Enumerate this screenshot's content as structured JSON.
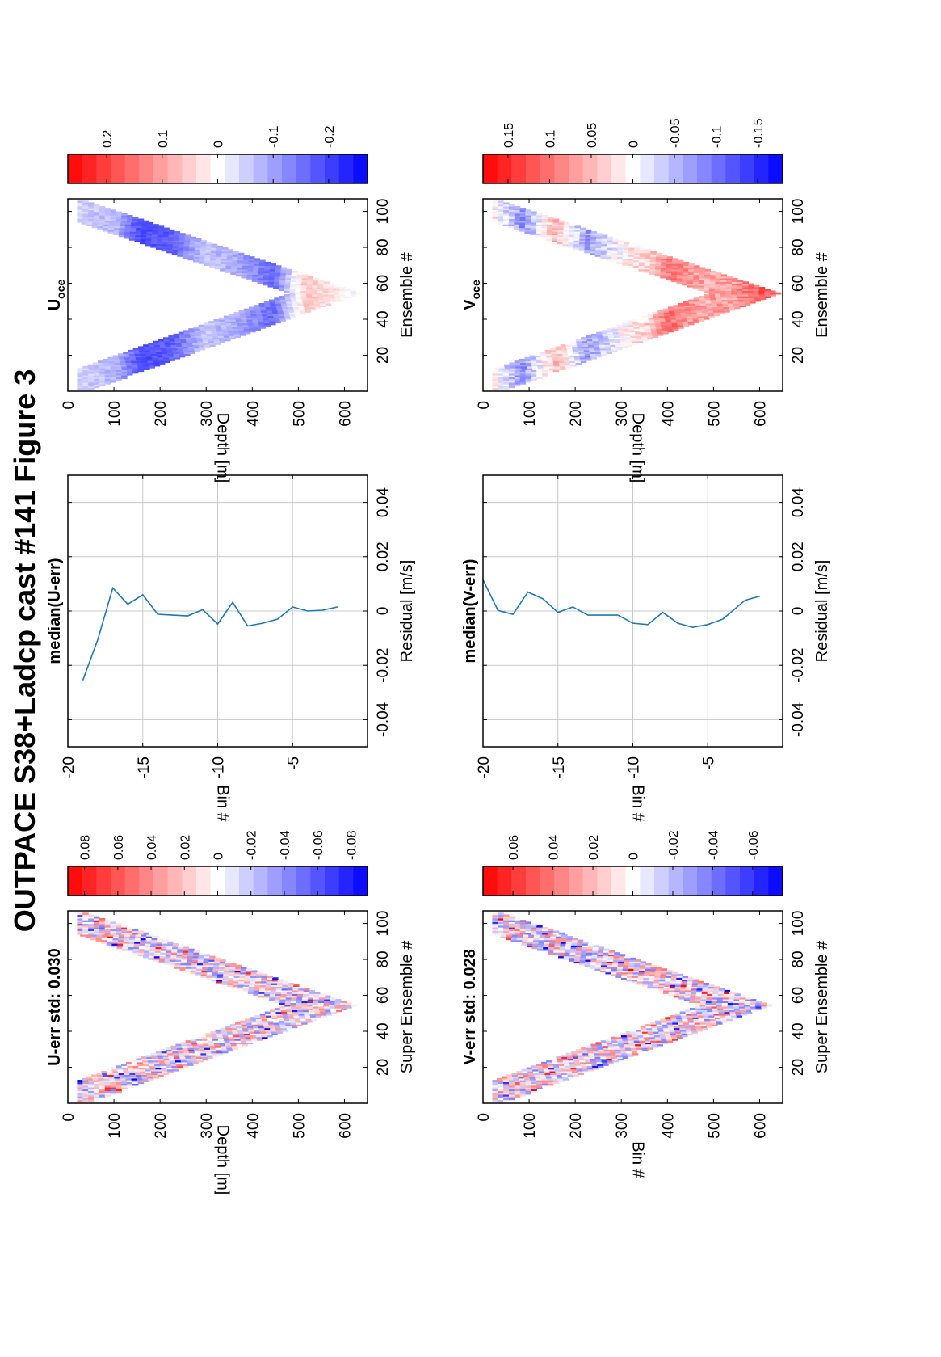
{
  "suptitle": "OUTPACE S38+Ladcp cast #141  Figure 3",
  "chart_data": [
    {
      "id": "uerr",
      "type": "heatmap",
      "title": "U-err std: 0.030",
      "xlabel": "Super Ensemble #",
      "ylabel": "Depth [m]",
      "xlim": [
        0,
        107
      ],
      "ylim": [
        0,
        650
      ],
      "xticks": [
        20,
        40,
        60,
        80,
        100
      ],
      "yticks": [
        0,
        100,
        200,
        300,
        400,
        500,
        600
      ],
      "colorbar": {
        "clim": [
          -0.09,
          0.09
        ],
        "ticks": [
          0.08,
          0.06,
          0.04,
          0.02,
          0,
          -0.02,
          -0.04,
          -0.06,
          -0.08
        ],
        "tick_labels": [
          "0.08",
          "0.06",
          "0.04",
          "0.02",
          "0",
          "-0.02",
          "-0.04",
          "-0.06",
          "-0.08"
        ]
      },
      "field": {
        "kind": "noise",
        "amp": 0.045,
        "bias": [],
        "turn_x": 54,
        "max_depth": 620
      }
    },
    {
      "id": "ubin",
      "type": "line",
      "title": "median(U-err)",
      "xlabel": "Residual [m/s]",
      "ylabel": "Bin #",
      "xlim": [
        -0.05,
        0.05
      ],
      "ylim": [
        -20,
        0
      ],
      "xticks": [
        -0.04,
        -0.02,
        0,
        0.02,
        0.04
      ],
      "xtick_labels": [
        "-0.04",
        "-0.02",
        "0",
        "0.02",
        "0.04"
      ],
      "yticks": [
        -5,
        -10,
        -15,
        -20
      ],
      "series": [
        {
          "x": [
            0.0015,
            0.0003,
            0.0,
            0.0015,
            -0.003,
            -0.0045,
            -0.0055,
            0.0032,
            -0.0048,
            0.0005,
            -0.0018,
            -0.0015,
            -0.0012,
            0.006,
            0.0025,
            0.0085,
            -0.0105,
            -0.0255
          ],
          "y": [
            -2,
            -3,
            -4,
            -5,
            -6,
            -7,
            -8,
            -9,
            -10,
            -11,
            -12,
            -13,
            -14,
            -15,
            -16,
            -17,
            -18,
            -19
          ],
          "color": "#1f77b4"
        }
      ]
    },
    {
      "id": "uoce",
      "type": "heatmap",
      "title": "U",
      "title_sub": "oce",
      "xlabel": "Ensemble #",
      "ylabel": "Depth [m]",
      "xlim": [
        0,
        107
      ],
      "ylim": [
        0,
        650
      ],
      "xticks": [
        20,
        40,
        60,
        80,
        100
      ],
      "yticks": [
        0,
        100,
        200,
        300,
        400,
        500,
        600
      ],
      "colorbar": {
        "clim": [
          -0.27,
          0.27
        ],
        "ticks": [
          0.2,
          0.1,
          0,
          -0.1,
          -0.2
        ],
        "tick_labels": [
          "0.2",
          "0.1",
          "0",
          "-0.1",
          "-0.2"
        ]
      },
      "field": {
        "kind": "smooth",
        "amp": 0.025,
        "bias": [
          [
            0,
            -0.04
          ],
          [
            100,
            -0.08
          ],
          [
            150,
            -0.19
          ],
          [
            220,
            -0.17
          ],
          [
            290,
            -0.06
          ],
          [
            360,
            -0.09
          ],
          [
            440,
            -0.16
          ],
          [
            510,
            0.06
          ],
          [
            570,
            0.03
          ],
          [
            620,
            -0.02
          ]
        ],
        "turn_x": 54,
        "max_depth": 630
      }
    },
    {
      "id": "verr",
      "type": "heatmap",
      "title": "V-err std: 0.028",
      "xlabel": "Super Ensemble #",
      "ylabel": "Bin #",
      "xlim": [
        0,
        107
      ],
      "ylim": [
        0,
        650
      ],
      "xticks": [
        20,
        40,
        60,
        80,
        100
      ],
      "yticks": [
        0,
        100,
        200,
        300,
        400,
        500,
        600
      ],
      "colorbar": {
        "clim": [
          -0.075,
          0.075
        ],
        "ticks": [
          0.06,
          0.04,
          0.02,
          0,
          -0.02,
          -0.04,
          -0.06
        ],
        "tick_labels": [
          "0.06",
          "0.04",
          "0.02",
          "0",
          "-0.02",
          "-0.04",
          "-0.06"
        ]
      },
      "field": {
        "kind": "noise",
        "amp": 0.04,
        "bias": [],
        "turn_x": 54,
        "max_depth": 620
      }
    },
    {
      "id": "vbin",
      "type": "line",
      "title": "median(V-err)",
      "xlabel": "Residual [m/s]",
      "ylabel": "Bin #",
      "xlim": [
        -0.05,
        0.05
      ],
      "ylim": [
        -20,
        0
      ],
      "xticks": [
        -0.04,
        -0.02,
        0,
        0.02,
        0.04
      ],
      "xtick_labels": [
        "-0.04",
        "-0.02",
        "0",
        "0.02",
        "0.04"
      ],
      "yticks": [
        -5,
        -10,
        -15,
        -20
      ],
      "series": [
        {
          "x": [
            0.0055,
            0.004,
            -0.003,
            -0.005,
            -0.006,
            -0.0045,
            -0.0005,
            -0.005,
            -0.0045,
            -0.0015,
            -0.0015,
            -0.0015,
            0.0015,
            -0.0005,
            0.0045,
            0.007,
            -0.0012,
            0.0002,
            0.0115
          ],
          "y": [
            -1.5,
            -2.5,
            -4,
            -5,
            -6,
            -7,
            -8,
            -9,
            -10,
            -11,
            -12,
            -13,
            -14,
            -15,
            -16,
            -17,
            -18,
            -19,
            -20
          ],
          "color": "#1f77b4"
        }
      ]
    },
    {
      "id": "voce",
      "type": "heatmap",
      "title": "V",
      "title_sub": "oce",
      "xlabel": "Ensemble #",
      "ylabel": "Depth [m]",
      "xlim": [
        0,
        107
      ],
      "ylim": [
        0,
        650
      ],
      "xticks": [
        20,
        40,
        60,
        80,
        100
      ],
      "yticks": [
        0,
        100,
        200,
        300,
        400,
        500,
        600
      ],
      "colorbar": {
        "clim": [
          -0.18,
          0.18
        ],
        "ticks": [
          0.15,
          0.1,
          0.05,
          0,
          -0.05,
          -0.1,
          -0.15
        ],
        "tick_labels": [
          "0.15",
          "0.1",
          "0.05",
          "0",
          "-0.05",
          "-0.1",
          "-0.15"
        ]
      },
      "field": {
        "kind": "smooth",
        "amp": 0.03,
        "bias": [
          [
            0,
            0.04
          ],
          [
            80,
            -0.08
          ],
          [
            150,
            0.05
          ],
          [
            220,
            -0.07
          ],
          [
            290,
            0.0
          ],
          [
            360,
            0.04
          ],
          [
            400,
            0.1
          ],
          [
            470,
            0.06
          ],
          [
            540,
            0.07
          ],
          [
            600,
            0.12
          ],
          [
            630,
            0.1
          ]
        ],
        "turn_x": 54,
        "max_depth": 640
      }
    }
  ]
}
